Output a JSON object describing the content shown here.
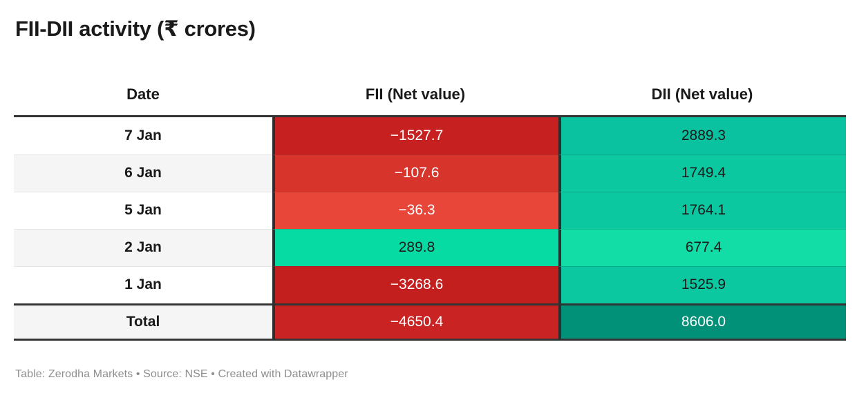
{
  "title": "FII-DII activity (₹ crores)",
  "table": {
    "columns": [
      {
        "id": "date",
        "label": "Date"
      },
      {
        "id": "fii",
        "label": "FII (Net value)"
      },
      {
        "id": "dii",
        "label": "DII (Net value)"
      }
    ],
    "rows": [
      {
        "date": "7 Jan",
        "date_bg": "#ffffff",
        "fii": {
          "text": "−1527.7",
          "bg": "#c62020",
          "color": "#ffffff"
        },
        "dii": {
          "text": "2889.3",
          "bg": "#0bc2a0",
          "color": "#1a1a1a"
        }
      },
      {
        "date": "6 Jan",
        "date_bg": "#f5f5f5",
        "fii": {
          "text": "−107.6",
          "bg": "#d7342c",
          "color": "#ffffff"
        },
        "dii": {
          "text": "1749.4",
          "bg": "#0cc8a1",
          "color": "#1a1a1a"
        }
      },
      {
        "date": "5 Jan",
        "date_bg": "#ffffff",
        "fii": {
          "text": "−36.3",
          "bg": "#e9463a",
          "color": "#ffffff"
        },
        "dii": {
          "text": "1764.1",
          "bg": "#0cc8a1",
          "color": "#1a1a1a"
        }
      },
      {
        "date": "2 Jan",
        "date_bg": "#f5f5f5",
        "fii": {
          "text": "289.8",
          "bg": "#06dba3",
          "color": "#1a1a1a"
        },
        "dii": {
          "text": "677.4",
          "bg": "#12dda7",
          "color": "#1a1a1a"
        }
      },
      {
        "date": "1 Jan",
        "date_bg": "#ffffff",
        "fii": {
          "text": "−3268.6",
          "bg": "#c41f1f",
          "color": "#ffffff"
        },
        "dii": {
          "text": "1525.9",
          "bg": "#0cc8a1",
          "color": "#1a1a1a"
        }
      }
    ],
    "total_row": {
      "label": "Total",
      "label_bg": "#f5f5f5",
      "fii": {
        "text": "−4650.4",
        "bg": "#c92323",
        "color": "#ffffff"
      },
      "dii": {
        "text": "8606.0",
        "bg": "#019178",
        "color": "#ffffff"
      }
    }
  },
  "footer": "Table: Zerodha Markets • Source: NSE • Created with Datawrapper",
  "colors": {
    "negative_strong": "#c41f1f",
    "negative_mid": "#d7342c",
    "negative_light": "#e9463a",
    "positive_bright": "#06dba3",
    "positive_teal": "#0cc8a1",
    "positive_dark": "#019178",
    "border_dark": "#333333",
    "alt_row": "#f5f5f5",
    "footer_text": "#8e8e8e"
  },
  "chart_data": {
    "type": "table",
    "title": "FII-DII activity (₹ crores)",
    "columns": [
      "Date",
      "FII (Net value)",
      "DII (Net value)"
    ],
    "rows": [
      [
        "7 Jan",
        -1527.7,
        2889.3
      ],
      [
        "6 Jan",
        -107.6,
        1749.4
      ],
      [
        "5 Jan",
        -36.3,
        1764.1
      ],
      [
        "2 Jan",
        289.8,
        677.4
      ],
      [
        "1 Jan",
        -3268.6,
        1525.9
      ],
      [
        "Total",
        -4650.4,
        8606.0
      ]
    ],
    "cell_coloring": "FII/DII cells heat-colored: red shades for negative values (darker = larger magnitude, white text), teal/green shades for positive values (lighter = smaller, dark text; total DII darkest teal with white text)",
    "footer": "Table: Zerodha Markets • Source: NSE • Created with Datawrapper"
  }
}
